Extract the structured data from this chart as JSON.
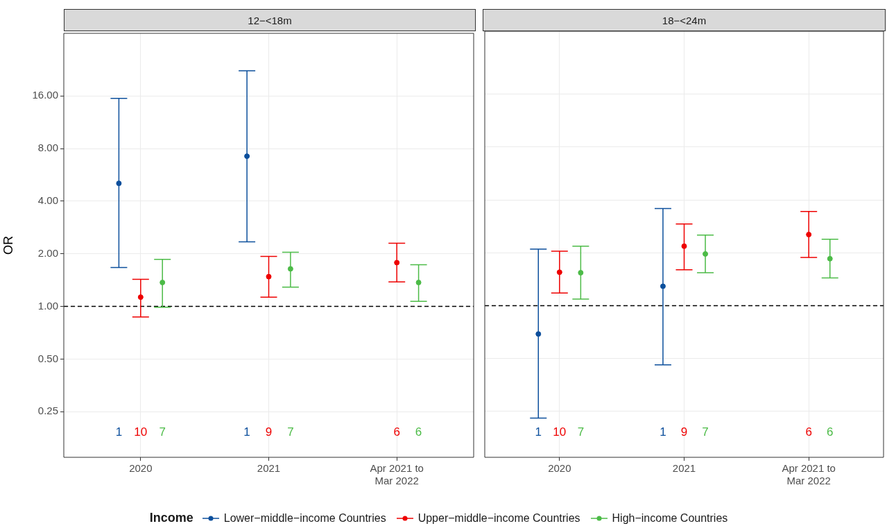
{
  "chart_data": [
    {
      "type": "scatter",
      "title": "12−<18m",
      "ylabel": "OR",
      "legend_title": "Income",
      "legend": "bottom",
      "log": true,
      "grid": true,
      "marker": "circle",
      "categories": [
        "2020",
        "2021",
        "Apr 2021 to\nMar 2022"
      ],
      "ylim": [
        0.137,
        36.5
      ],
      "yticks": [
        {
          "value": 0.25,
          "label": "0.25"
        },
        {
          "value": 0.5,
          "label": "0.50"
        },
        {
          "value": 1,
          "label": "1.00"
        },
        {
          "value": 2,
          "label": "2.00"
        },
        {
          "value": 4,
          "label": "4.00"
        },
        {
          "value": 8,
          "label": "8.00"
        },
        {
          "value": 16,
          "label": "16.00"
        }
      ],
      "ref_lines": [
        {
          "axis": "y",
          "value": 1,
          "line_style": "dashed",
          "color": "#000000"
        }
      ],
      "annotations": [
        "1",
        "10",
        "7",
        "1",
        "9",
        "7",
        "6",
        "6"
      ],
      "series": [
        {
          "name": "Lower−middle−income Countries",
          "color": "#0c4f9c",
          "values": [
            5.06,
            7.23,
            null
          ],
          "errors": [
            [
              1.67,
              15.5
            ],
            [
              2.34,
              22.3
            ],
            null
          ]
        },
        {
          "name": "Upper−middle−income Countries",
          "color": "#ee0000",
          "values": [
            1.13,
            1.48,
            1.78
          ],
          "errors": [
            [
              0.87,
              1.43
            ],
            [
              1.13,
              1.93
            ],
            [
              1.38,
              2.3
            ]
          ]
        },
        {
          "name": "High−income Countries",
          "color": "#4cbb47",
          "values": [
            1.37,
            1.64,
            1.37
          ],
          "errors": [
            [
              0.99,
              1.86
            ],
            [
              1.29,
              2.04
            ],
            [
              1.07,
              1.73
            ]
          ]
        }
      ]
    },
    {
      "type": "scatter",
      "title": "18−<24m",
      "log": true,
      "grid": true,
      "marker": "circle",
      "tick_labels": "x",
      "categories": [
        "2020",
        "2021",
        "Apr 2021 to\nMar 2022"
      ],
      "ylim": [
        0.137,
        36.5
      ],
      "yticks": [
        {
          "value": 0.25,
          "label": null
        },
        {
          "value": 0.5,
          "label": null
        },
        {
          "value": 1,
          "label": null
        },
        {
          "value": 2,
          "label": null
        },
        {
          "value": 4,
          "label": null
        },
        {
          "value": 8,
          "label": null
        },
        {
          "value": 16,
          "label": null
        }
      ],
      "ref_lines": [
        {
          "axis": "y",
          "value": 1,
          "line_style": "dashed",
          "color": "#000000"
        }
      ],
      "annotations": [
        "1",
        "10",
        "7",
        "1",
        "9",
        "7",
        "6",
        "6"
      ],
      "series": [
        {
          "color": "#0c4f9c",
          "values": [
            0.69,
            1.29,
            null
          ],
          "errors": [
            [
              0.229,
              2.1
            ],
            [
              0.46,
              3.57
            ],
            null
          ]
        },
        {
          "color": "#ee0000",
          "values": [
            1.55,
            2.18,
            2.54
          ],
          "errors": [
            [
              1.18,
              2.04
            ],
            [
              1.6,
              2.92
            ],
            [
              1.88,
              3.44
            ]
          ]
        },
        {
          "color": "#4cbb47",
          "values": [
            1.54,
            1.97,
            1.85
          ],
          "errors": [
            [
              1.09,
              2.18
            ],
            [
              1.54,
              2.52
            ],
            [
              1.44,
              2.39
            ]
          ]
        }
      ]
    }
  ]
}
